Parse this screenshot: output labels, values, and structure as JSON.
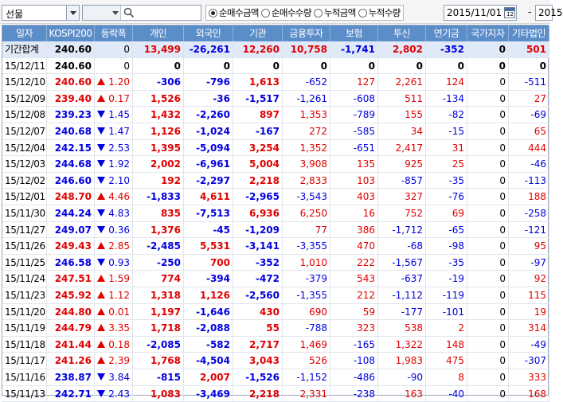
{
  "toolbar": {
    "market_select": "선물",
    "radio_options": [
      {
        "label": "순매수금액",
        "checked": true
      },
      {
        "label": "순매수수량",
        "checked": false
      },
      {
        "label": "누적금액",
        "checked": false
      },
      {
        "label": "누적수량",
        "checked": false
      }
    ],
    "start_date": "2015/11/01",
    "date_separator": "-",
    "end_date": "2015"
  },
  "table": {
    "columns": [
      "일자",
      "KOSPI200",
      "등락폭",
      "개인",
      "외국인",
      "기관",
      "금융투자",
      "보험",
      "투신",
      "연기금",
      "국가지자",
      "기타법인"
    ],
    "rows": [
      {
        "date": "기간합계",
        "kospi": "240.60",
        "dir": "",
        "chg": "0",
        "ind": "13,499",
        "for": "-26,261",
        "inst": "12,260",
        "fin": "10,758",
        "ins": "-1,741",
        "trust": "2,802",
        "pension": "-352",
        "gov": "0",
        "etc": "501",
        "type": "sum"
      },
      {
        "date": "15/12/11",
        "kospi": "240.60",
        "dir": "",
        "chg": "0",
        "ind": "0",
        "for": "0",
        "inst": "0",
        "fin": "0",
        "ins": "0",
        "trust": "0",
        "pension": "0",
        "gov": "0",
        "etc": "0",
        "type": "zero"
      },
      {
        "date": "15/12/10",
        "kospi": "240.60",
        "dir": "up",
        "chg": "1.20",
        "ind": "-306",
        "for": "-796",
        "inst": "1,613",
        "fin": "-652",
        "ins": "127",
        "trust": "2,261",
        "pension": "124",
        "gov": "0",
        "etc": "-511"
      },
      {
        "date": "15/12/09",
        "kospi": "239.40",
        "dir": "up",
        "chg": "0.17",
        "ind": "1,526",
        "for": "-36",
        "inst": "-1,517",
        "fin": "-1,261",
        "ins": "-608",
        "trust": "511",
        "pension": "-134",
        "gov": "0",
        "etc": "27"
      },
      {
        "date": "15/12/08",
        "kospi": "239.23",
        "dir": "down",
        "chg": "1.45",
        "ind": "1,432",
        "for": "-2,260",
        "inst": "897",
        "fin": "1,353",
        "ins": "-789",
        "trust": "155",
        "pension": "-82",
        "gov": "0",
        "etc": "-69"
      },
      {
        "date": "15/12/07",
        "kospi": "240.68",
        "dir": "down",
        "chg": "1.47",
        "ind": "1,126",
        "for": "-1,024",
        "inst": "-167",
        "fin": "272",
        "ins": "-585",
        "trust": "34",
        "pension": "-15",
        "gov": "0",
        "etc": "65"
      },
      {
        "date": "15/12/04",
        "kospi": "242.15",
        "dir": "down",
        "chg": "2.53",
        "ind": "1,395",
        "for": "-5,094",
        "inst": "3,254",
        "fin": "1,352",
        "ins": "-651",
        "trust": "2,417",
        "pension": "31",
        "gov": "0",
        "etc": "444"
      },
      {
        "date": "15/12/03",
        "kospi": "244.68",
        "dir": "down",
        "chg": "1.92",
        "ind": "2,002",
        "for": "-6,961",
        "inst": "5,004",
        "fin": "3,908",
        "ins": "135",
        "trust": "925",
        "pension": "25",
        "gov": "0",
        "etc": "-46"
      },
      {
        "date": "15/12/02",
        "kospi": "246.60",
        "dir": "down",
        "chg": "2.10",
        "ind": "192",
        "for": "-2,297",
        "inst": "2,218",
        "fin": "2,833",
        "ins": "103",
        "trust": "-857",
        "pension": "-35",
        "gov": "0",
        "etc": "-113"
      },
      {
        "date": "15/12/01",
        "kospi": "248.70",
        "dir": "up",
        "chg": "4.46",
        "ind": "-1,833",
        "for": "4,611",
        "inst": "-2,965",
        "fin": "-3,543",
        "ins": "403",
        "trust": "327",
        "pension": "-76",
        "gov": "0",
        "etc": "188"
      },
      {
        "date": "15/11/30",
        "kospi": "244.24",
        "dir": "down",
        "chg": "4.83",
        "ind": "835",
        "for": "-7,513",
        "inst": "6,936",
        "fin": "6,250",
        "ins": "16",
        "trust": "752",
        "pension": "69",
        "gov": "0",
        "etc": "-258"
      },
      {
        "date": "15/11/27",
        "kospi": "249.07",
        "dir": "down",
        "chg": "0.36",
        "ind": "1,376",
        "for": "-45",
        "inst": "-1,209",
        "fin": "77",
        "ins": "386",
        "trust": "-1,712",
        "pension": "-65",
        "gov": "0",
        "etc": "-121"
      },
      {
        "date": "15/11/26",
        "kospi": "249.43",
        "dir": "up",
        "chg": "2.85",
        "ind": "-2,485",
        "for": "5,531",
        "inst": "-3,141",
        "fin": "-3,355",
        "ins": "470",
        "trust": "-68",
        "pension": "-98",
        "gov": "0",
        "etc": "95"
      },
      {
        "date": "15/11/25",
        "kospi": "246.58",
        "dir": "down",
        "chg": "0.93",
        "ind": "-250",
        "for": "700",
        "inst": "-352",
        "fin": "1,010",
        "ins": "222",
        "trust": "-1,567",
        "pension": "-35",
        "gov": "0",
        "etc": "-97"
      },
      {
        "date": "15/11/24",
        "kospi": "247.51",
        "dir": "up",
        "chg": "1.59",
        "ind": "774",
        "for": "-394",
        "inst": "-472",
        "fin": "-379",
        "ins": "543",
        "trust": "-637",
        "pension": "-19",
        "gov": "0",
        "etc": "92"
      },
      {
        "date": "15/11/23",
        "kospi": "245.92",
        "dir": "up",
        "chg": "1.12",
        "ind": "1,318",
        "for": "1,126",
        "inst": "-2,560",
        "fin": "-1,355",
        "ins": "212",
        "trust": "-1,112",
        "pension": "-119",
        "gov": "0",
        "etc": "115"
      },
      {
        "date": "15/11/20",
        "kospi": "244.80",
        "dir": "up",
        "chg": "0.01",
        "ind": "1,197",
        "for": "-1,646",
        "inst": "430",
        "fin": "690",
        "ins": "59",
        "trust": "-177",
        "pension": "-101",
        "gov": "0",
        "etc": "19"
      },
      {
        "date": "15/11/19",
        "kospi": "244.79",
        "dir": "up",
        "chg": "3.35",
        "ind": "1,718",
        "for": "-2,088",
        "inst": "55",
        "fin": "-788",
        "ins": "323",
        "trust": "538",
        "pension": "2",
        "gov": "0",
        "etc": "314"
      },
      {
        "date": "15/11/18",
        "kospi": "241.44",
        "dir": "up",
        "chg": "0.18",
        "ind": "-2,085",
        "for": "-582",
        "inst": "2,717",
        "fin": "1,469",
        "ins": "-165",
        "trust": "1,322",
        "pension": "148",
        "gov": "0",
        "etc": "-49"
      },
      {
        "date": "15/11/17",
        "kospi": "241.26",
        "dir": "up",
        "chg": "2.39",
        "ind": "1,768",
        "for": "-4,504",
        "inst": "3,043",
        "fin": "526",
        "ins": "-108",
        "trust": "1,983",
        "pension": "475",
        "gov": "0",
        "etc": "-307"
      },
      {
        "date": "15/11/16",
        "kospi": "238.87",
        "dir": "down",
        "chg": "3.84",
        "ind": "-815",
        "for": "2,007",
        "inst": "-1,526",
        "fin": "-1,152",
        "ins": "-486",
        "trust": "-90",
        "pension": "8",
        "gov": "0",
        "etc": "333"
      },
      {
        "date": "15/11/13",
        "kospi": "242.71",
        "dir": "down",
        "chg": "2.43",
        "ind": "1,083",
        "for": "-3,469",
        "inst": "2,218",
        "fin": "2,331",
        "ins": "-238",
        "trust": "163",
        "pension": "-40",
        "gov": "0",
        "etc": "168"
      }
    ]
  },
  "colors": {
    "header_bg": "#5b8dc9",
    "sum_row_bg": "#dfe9f7",
    "up": "#e00000",
    "down": "#0000e0"
  }
}
